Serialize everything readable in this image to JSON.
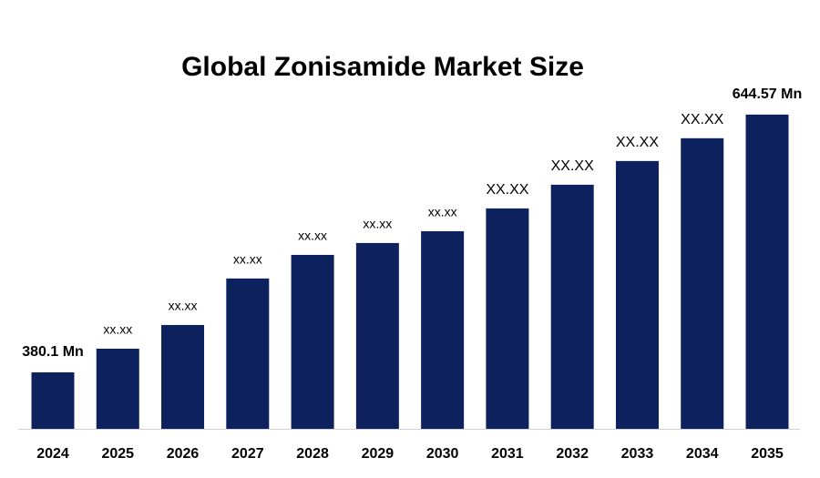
{
  "chart_data": {
    "type": "bar",
    "title": "Global Zonisamide Market Size",
    "categories": [
      "2024",
      "2025",
      "2026",
      "2027",
      "2028",
      "2029",
      "2030",
      "2031",
      "2032",
      "2033",
      "2034",
      "2035"
    ],
    "values": [
      380.1,
      404.4,
      428.7,
      476.4,
      500.6,
      512.8,
      524.9,
      548.3,
      572.6,
      596.9,
      620.3,
      644.57
    ],
    "value_labels": [
      "380.1 Mn",
      "xx.xx",
      "xx.xx",
      "xx.xx",
      "xx.xx",
      "xx.xx",
      "xx.xx",
      "XX.XX",
      "XX.XX",
      "XX.XX",
      "XX.XX",
      "644.57 Mn"
    ],
    "color": "#0c215e",
    "ylim": [
      322.16,
      700
    ],
    "grid": false
  }
}
